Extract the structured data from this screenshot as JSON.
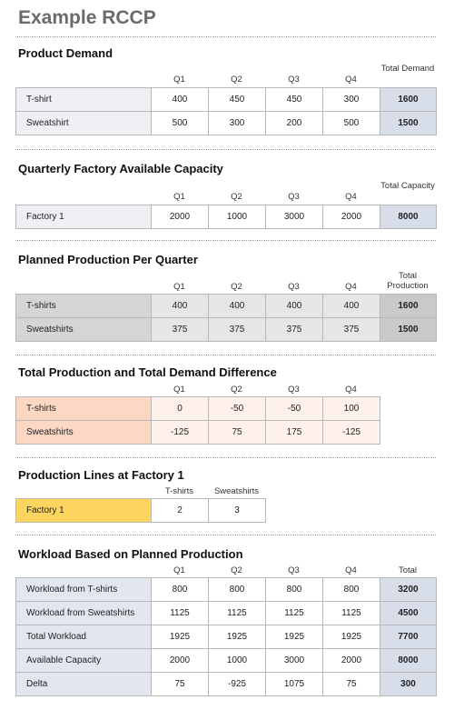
{
  "title": "Example RCCP",
  "product_demand": {
    "title": "Product Demand",
    "headers": [
      "Q1",
      "Q2",
      "Q3",
      "Q4",
      "Total Demand"
    ],
    "rows": [
      {
        "label": "T-shirt",
        "values": [
          "400",
          "450",
          "450",
          "300"
        ],
        "total": "1600"
      },
      {
        "label": "Sweatshirt",
        "values": [
          "500",
          "300",
          "200",
          "500"
        ],
        "total": "1500"
      }
    ]
  },
  "factory_capacity": {
    "title": "Quarterly Factory Available Capacity",
    "headers": [
      "Q1",
      "Q2",
      "Q3",
      "Q4",
      "Total Capacity"
    ],
    "rows": [
      {
        "label": "Factory 1",
        "values": [
          "2000",
          "1000",
          "3000",
          "2000"
        ],
        "total": "8000"
      }
    ]
  },
  "planned_production": {
    "title": "Planned Production Per Quarter",
    "headers": [
      "Q1",
      "Q2",
      "Q3",
      "Q4",
      "Total Production"
    ],
    "rows": [
      {
        "label": "T-shirts",
        "values": [
          "400",
          "400",
          "400",
          "400"
        ],
        "total": "1600"
      },
      {
        "label": "Sweatshirts",
        "values": [
          "375",
          "375",
          "375",
          "375"
        ],
        "total": "1500"
      }
    ]
  },
  "difference": {
    "title": "Total Production and Total Demand Difference",
    "headers": [
      "Q1",
      "Q2",
      "Q3",
      "Q4"
    ],
    "rows": [
      {
        "label": "T-shirts",
        "values": [
          "0",
          "-50",
          "-50",
          "100"
        ]
      },
      {
        "label": "Sweatshirts",
        "values": [
          "-125",
          "75",
          "175",
          "-125"
        ]
      }
    ]
  },
  "production_lines": {
    "title": "Production Lines at Factory 1",
    "headers": [
      "T-shirts",
      "Sweatshirts"
    ],
    "rows": [
      {
        "label": "Factory 1",
        "values": [
          "2",
          "3"
        ]
      }
    ]
  },
  "workload": {
    "title": "Workload Based on Planned Production",
    "headers": [
      "Q1",
      "Q2",
      "Q3",
      "Q4",
      "Total"
    ],
    "rows": [
      {
        "label": "Workload from T-shirts",
        "values": [
          "800",
          "800",
          "800",
          "800"
        ],
        "total": "3200"
      },
      {
        "label": "Workload from Sweatshirts",
        "values": [
          "1125",
          "1125",
          "1125",
          "1125"
        ],
        "total": "4500"
      },
      {
        "label": "Total Workload",
        "values": [
          "1925",
          "1925",
          "1925",
          "1925"
        ],
        "total": "7700"
      },
      {
        "label": "Available Capacity",
        "values": [
          "2000",
          "1000",
          "3000",
          "2000"
        ],
        "total": "8000"
      },
      {
        "label": "Delta",
        "values": [
          "75",
          "-925",
          "1075",
          "75"
        ],
        "total": "300"
      }
    ]
  }
}
